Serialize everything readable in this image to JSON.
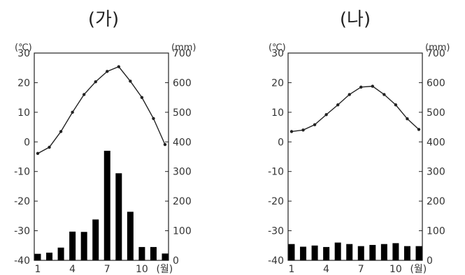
{
  "chart_data": [
    {
      "type": "bar+line",
      "title": "(가)",
      "left_axis_unit": "(℃)",
      "right_axis_unit": "(mm)",
      "x_ticks": [
        "1",
        "4",
        "7",
        "10"
      ],
      "x_unit": "(월)",
      "left_ticks": [
        "30",
        "20",
        "10",
        "0",
        "-10",
        "-20",
        "-30",
        "-40"
      ],
      "right_ticks": [
        "700",
        "600",
        "500",
        "400",
        "300",
        "200",
        "100",
        "0"
      ],
      "temp_ylim": [
        -40,
        30
      ],
      "precip_ylim": [
        0,
        700
      ],
      "months": [
        1,
        2,
        3,
        4,
        5,
        6,
        7,
        8,
        9,
        10,
        11,
        12
      ],
      "temperature": [
        -3.9,
        -1.8,
        3.5,
        10.0,
        16.0,
        20.3,
        23.8,
        25.4,
        20.5,
        15.0,
        7.9,
        -0.9
      ],
      "precipitation": [
        22,
        26,
        43,
        97,
        96,
        138,
        370,
        294,
        164,
        45,
        45,
        23
      ]
    },
    {
      "type": "bar+line",
      "title": "(나)",
      "left_axis_unit": "(℃)",
      "right_axis_unit": "(mm)",
      "x_ticks": [
        "1",
        "4",
        "7",
        "10"
      ],
      "x_unit": "(월)",
      "left_ticks": [
        "30",
        "20",
        "10",
        "0",
        "-10",
        "-20",
        "-30",
        "-40"
      ],
      "right_ticks": [
        "700",
        "600",
        "500",
        "400",
        "300",
        "200",
        "100",
        "0"
      ],
      "temp_ylim": [
        -40,
        30
      ],
      "precip_ylim": [
        0,
        700
      ],
      "months": [
        1,
        2,
        3,
        4,
        5,
        6,
        7,
        8,
        9,
        10,
        11,
        12
      ],
      "temperature": [
        3.5,
        4.0,
        5.8,
        9.2,
        12.5,
        16.0,
        18.5,
        18.8,
        16.0,
        12.5,
        7.8,
        4.2
      ],
      "precipitation": [
        55,
        46,
        50,
        45,
        60,
        55,
        48,
        52,
        55,
        58,
        48,
        48
      ]
    }
  ]
}
